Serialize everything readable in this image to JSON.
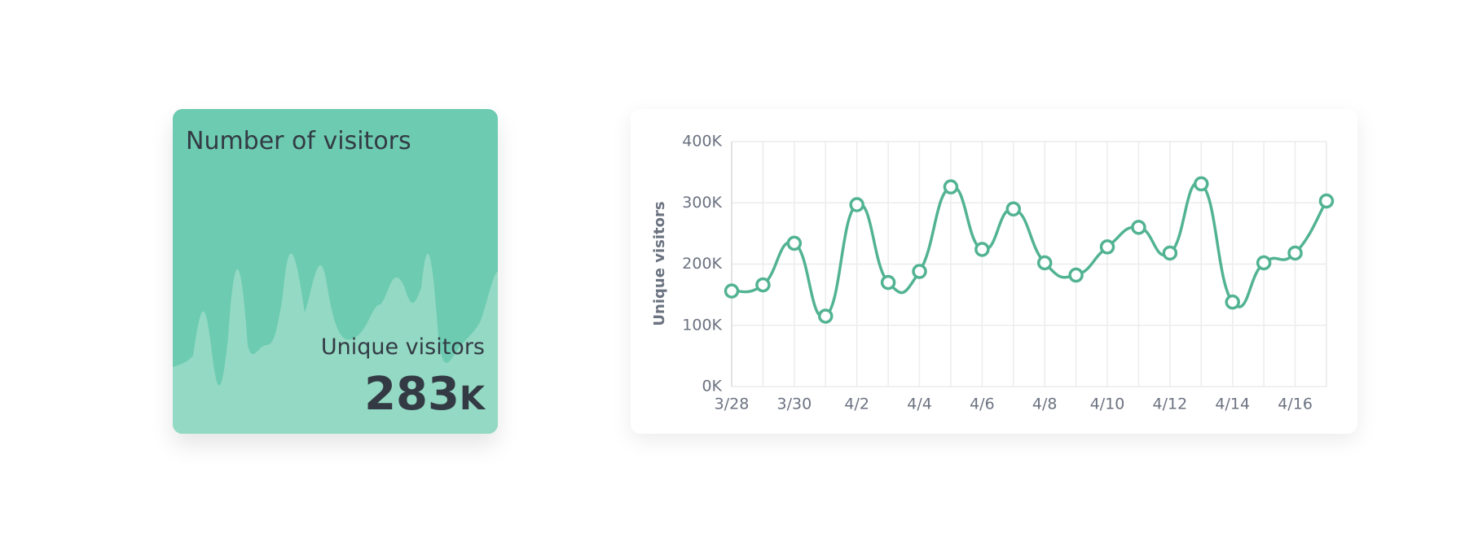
{
  "card": {
    "title": "Number of visitors",
    "label": "Unique visitors",
    "value": "283",
    "suffix": "K"
  },
  "chart_data": {
    "type": "line",
    "y_label": "Unique visitors",
    "categories": [
      "3/28",
      null,
      "3/30",
      null,
      "4/2",
      null,
      "4/4",
      null,
      "4/6",
      null,
      "4/8",
      null,
      "4/10",
      null,
      "4/12",
      null,
      "4/14",
      null,
      "4/16",
      null
    ],
    "values": [
      156000,
      166000,
      234000,
      115000,
      297000,
      170000,
      188000,
      326000,
      224000,
      290000,
      202000,
      182000,
      228000,
      260000,
      218000,
      331000,
      138000,
      202000,
      218000,
      303000
    ],
    "color": "#52b393",
    "ylim": [
      0,
      400000
    ],
    "yticks": [
      {
        "value": 0,
        "label": "0K"
      },
      {
        "value": 100000,
        "label": "100K"
      },
      {
        "value": 200000,
        "label": "200K"
      },
      {
        "value": 300000,
        "label": "300K"
      },
      {
        "value": 400000,
        "label": "400K"
      }
    ],
    "grid": true
  }
}
